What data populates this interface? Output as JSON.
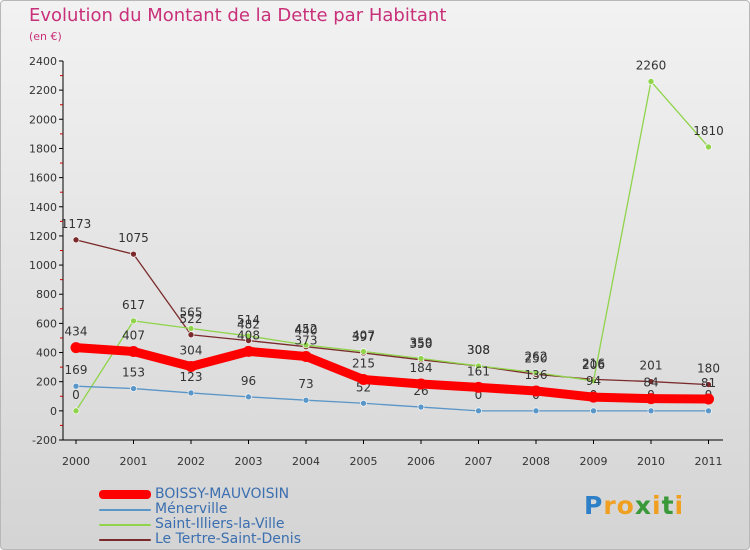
{
  "chart_data": {
    "type": "line",
    "title": "Evolution du Montant de la Dette par Habitant",
    "subtitle": "(en €)",
    "x": [
      "2000",
      "2001",
      "2002",
      "2003",
      "2004",
      "2005",
      "2006",
      "2007",
      "2008",
      "2009",
      "2010",
      "2011"
    ],
    "ylim": [
      -200,
      2400
    ],
    "yticks": [
      -200,
      0,
      200,
      400,
      600,
      800,
      1000,
      1200,
      1400,
      1600,
      1800,
      2000,
      2200,
      2400
    ],
    "grid": false,
    "legend_position": "bottom-left",
    "series": [
      {
        "name": "Le Tertre-Saint-Denis",
        "color": "#7a2a2a",
        "values": [
          1173,
          1075,
          522,
          482,
          440,
          397,
          350,
          308,
          250,
          216,
          201,
          180
        ],
        "labels": [
          "1173",
          "1075",
          "522",
          "482",
          "440",
          "397",
          "350",
          "308",
          "250",
          "216",
          "201",
          "180"
        ],
        "label_offsets": [
          -12,
          -12,
          -12,
          -12,
          -12,
          -12,
          -12,
          -12,
          -12,
          -12,
          -12,
          -12
        ]
      },
      {
        "name": "Saint-Illiers-la-Ville",
        "color": "#8fd44a",
        "values": [
          0,
          617,
          565,
          514,
          452,
          407,
          359,
          308,
          262,
          206,
          2260,
          1810
        ],
        "labels": [
          "0",
          "617",
          "565",
          "514",
          "452",
          "407",
          "359",
          "308",
          "262",
          "206",
          "2260",
          "1810"
        ],
        "label_offsets": [
          -12,
          -12,
          -12,
          -12,
          -12,
          -12,
          -12,
          -12,
          -12,
          -12,
          -12,
          -12
        ]
      },
      {
        "name": "Ménerville",
        "color": "#5a96c8",
        "values": [
          169,
          153,
          123,
          96,
          73,
          52,
          26,
          0,
          0,
          0,
          0,
          0
        ],
        "labels": [
          "169",
          "153",
          "123",
          "96",
          "73",
          "52",
          "26",
          "0",
          "0",
          "0",
          "0",
          "0"
        ],
        "label_offsets": [
          -12,
          -12,
          -12,
          -12,
          -12,
          -12,
          -12,
          -12,
          -12,
          -12,
          -12,
          -12
        ]
      },
      {
        "name": "BOISSY-MAUVOISIN",
        "color": "#ff0000",
        "values": [
          434,
          407,
          304,
          408,
          373,
          215,
          184,
          161,
          136,
          94,
          84,
          81
        ],
        "labels": [
          "434",
          "407",
          "304",
          "408",
          "373",
          "215",
          "184",
          "161",
          "136",
          "94",
          "84",
          "81"
        ],
        "label_offsets": [
          -12,
          -12,
          -12,
          -12,
          -12,
          -12,
          -12,
          -12,
          -12,
          -12,
          -12,
          -12
        ]
      }
    ]
  },
  "legend": [
    {
      "name": "BOISSY-MAUVOISIN",
      "color": "#ff0000",
      "thickness": 9
    },
    {
      "name": "Ménerville",
      "color": "#5a96c8",
      "thickness": 2
    },
    {
      "name": "Saint-Illiers-la-Ville",
      "color": "#8fd44a",
      "thickness": 2
    },
    {
      "name": "Le Tertre-Saint-Denis",
      "color": "#7a2a2a",
      "thickness": 2
    }
  ],
  "logo": {
    "letters": [
      "P",
      "r",
      "o",
      "x",
      "i",
      "t",
      "i"
    ],
    "colors": [
      "#2d7fc8",
      "#f0a020",
      "#f0a020",
      "#3a9a3a",
      "#f0a020",
      "#3a9a3a",
      "#f0a020"
    ]
  }
}
